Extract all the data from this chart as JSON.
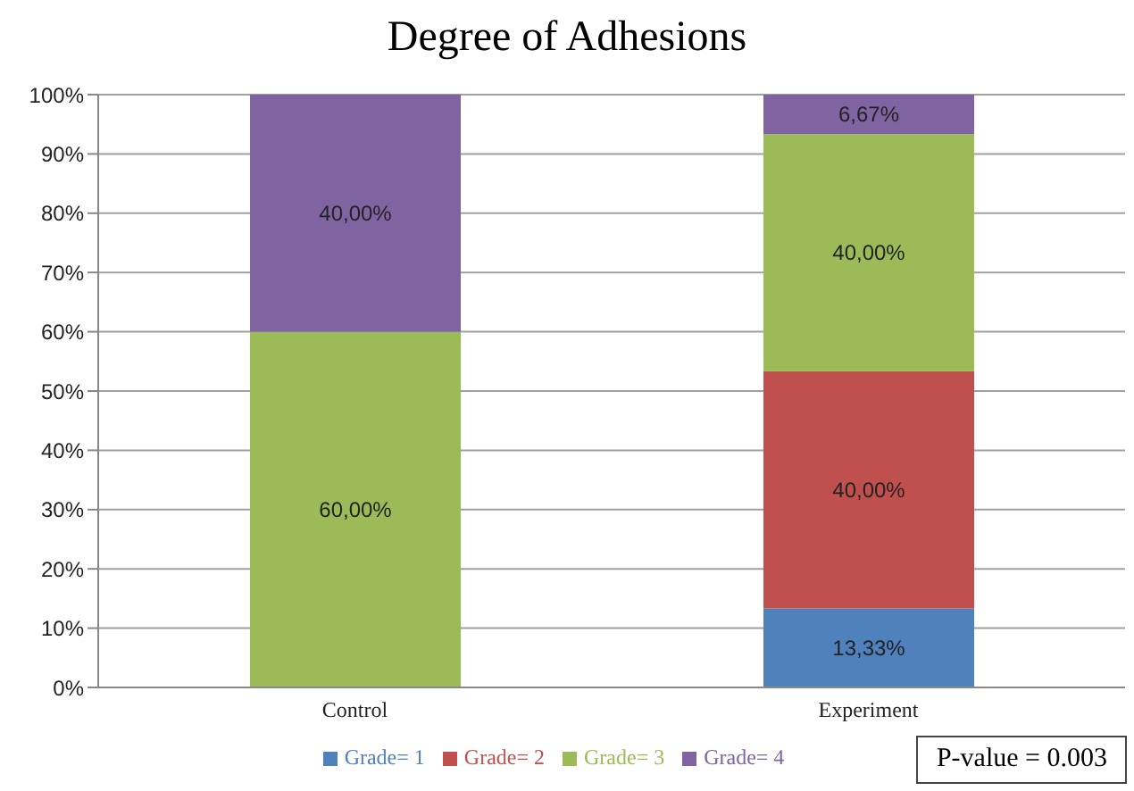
{
  "chart_data": {
    "type": "bar",
    "title": "Degree of Adhesions",
    "categories": [
      "Control",
      "Experiment"
    ],
    "stacked": true,
    "series": [
      {
        "name": "Grade= 1",
        "color": "#4f81bd",
        "values": [
          null,
          13.33
        ],
        "value_labels": [
          null,
          "13,33%"
        ]
      },
      {
        "name": "Grade= 2",
        "color": "#c0504d",
        "values": [
          null,
          40
        ],
        "value_labels": [
          null,
          "40,00%"
        ]
      },
      {
        "name": "Grade= 3",
        "color": "#9bbb59",
        "values": [
          60,
          40
        ],
        "value_labels": [
          "60,00%",
          "40,00%"
        ]
      },
      {
        "name": "Grade= 4",
        "color": "#8064a2",
        "values": [
          40,
          6.67
        ],
        "value_labels": [
          "40,00%",
          "6,67%"
        ]
      }
    ],
    "ylim": [
      0,
      100
    ],
    "yticks": [
      {
        "value": 0,
        "label": "0%"
      },
      {
        "value": 10,
        "label": "10%"
      },
      {
        "value": 20,
        "label": "20%"
      },
      {
        "value": 30,
        "label": "30%"
      },
      {
        "value": 40,
        "label": "40%"
      },
      {
        "value": 50,
        "label": "50%"
      },
      {
        "value": 60,
        "label": "60%"
      },
      {
        "value": 70,
        "label": "70%"
      },
      {
        "value": 80,
        "label": "80%"
      },
      {
        "value": 90,
        "label": "90%"
      },
      {
        "value": 100,
        "label": "100%"
      }
    ],
    "grid": "y",
    "legend": "bottom",
    "annotations": [
      "P-value = 0.003"
    ]
  }
}
